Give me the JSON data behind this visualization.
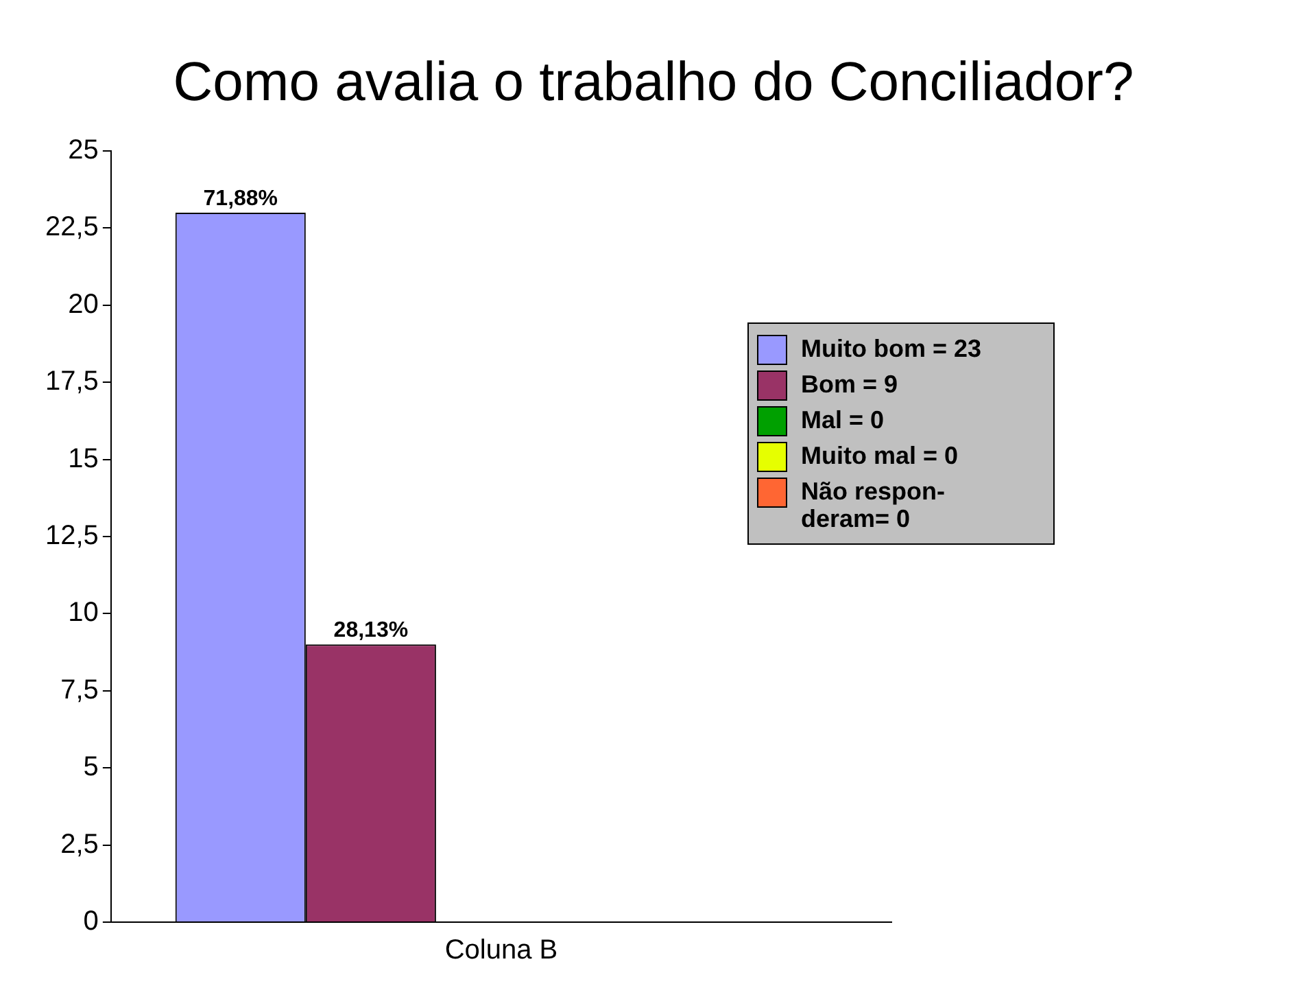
{
  "chart_data": {
    "type": "bar",
    "title": "Como avalia o trabalho do Conciliador?",
    "categories": [
      "Coluna B"
    ],
    "series": [
      {
        "name": "Muito bom = 23",
        "color": "#9999ff",
        "values": [
          23
        ]
      },
      {
        "name": "Bom = 9",
        "color": "#993366",
        "values": [
          9
        ]
      },
      {
        "name": "Mal = 0",
        "color": "#00a000",
        "values": [
          0
        ]
      },
      {
        "name": "Muito mal = 0",
        "color": "#e6ff00",
        "values": [
          0
        ]
      },
      {
        "name": "Não respon- deram= 0",
        "color": "#ff6633",
        "values": [
          0
        ]
      }
    ],
    "annotations": [
      "71,88%",
      "28,13%"
    ],
    "ylim": [
      0,
      25
    ],
    "yticks": [
      0,
      {
        "value": 2.5,
        "label": "2,5"
      },
      5,
      {
        "value": 7.5,
        "label": "7,5"
      },
      10,
      {
        "value": 12.5,
        "label": "12,5"
      },
      15,
      {
        "value": 17.5,
        "label": "17,5"
      },
      20,
      {
        "value": 22.5,
        "label": "22,5"
      },
      25
    ],
    "grid": false,
    "legend": "right"
  }
}
